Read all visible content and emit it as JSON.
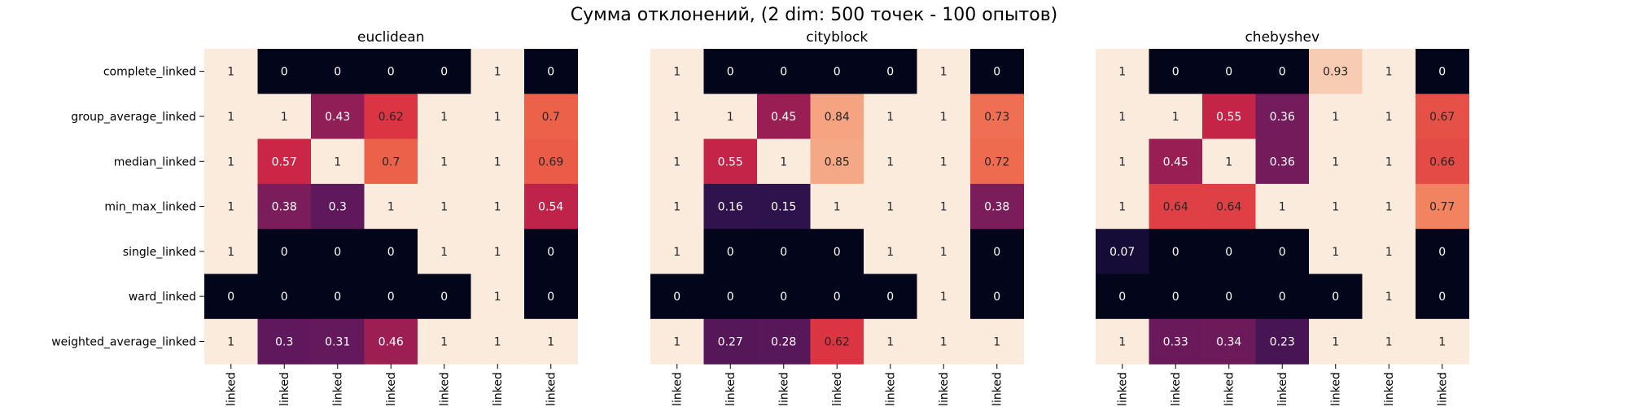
{
  "figure": {
    "suptitle": "Сумма отклонений, (2 dim: 500 точек - 100 опытов)"
  },
  "chart_data": [
    {
      "type": "heatmap",
      "title": "euclidean",
      "rows": [
        "complete_linked",
        "group_average_linked",
        "median_linked",
        "min_max_linked",
        "single_linked",
        "ward_linked",
        "weighted_average_linked"
      ],
      "col_tick_labels": [
        "linked",
        "linked",
        "linked",
        "linked",
        "linked",
        "linked",
        "linked"
      ],
      "values": [
        [
          1,
          0,
          0,
          0,
          0,
          1,
          0
        ],
        [
          1,
          1,
          0.43,
          0.62,
          1,
          1,
          0.7
        ],
        [
          1,
          0.57,
          1,
          0.7,
          1,
          1,
          0.69
        ],
        [
          1,
          0.38,
          0.3,
          1,
          1,
          1,
          0.54
        ],
        [
          1,
          0,
          0,
          0,
          1,
          1,
          0
        ],
        [
          0,
          0,
          0,
          0,
          0,
          1,
          0
        ],
        [
          1,
          0.3,
          0.31,
          0.46,
          1,
          1,
          1
        ]
      ],
      "colormap": "rocket",
      "annotated": true
    },
    {
      "type": "heatmap",
      "title": "cityblock",
      "rows": [
        "complete_linked",
        "group_average_linked",
        "median_linked",
        "min_max_linked",
        "single_linked",
        "ward_linked",
        "weighted_average_linked"
      ],
      "col_tick_labels": [
        "linked",
        "linked",
        "linked",
        "linked",
        "linked",
        "linked",
        "linked"
      ],
      "values": [
        [
          1,
          0,
          0,
          0,
          0,
          1,
          0
        ],
        [
          1,
          1,
          0.45,
          0.84,
          1,
          1,
          0.73
        ],
        [
          1,
          0.55,
          1,
          0.85,
          1,
          1,
          0.72
        ],
        [
          1,
          0.16,
          0.15,
          1,
          1,
          1,
          0.38
        ],
        [
          1,
          0,
          0,
          0,
          1,
          1,
          0
        ],
        [
          0,
          0,
          0,
          0,
          0,
          1,
          0
        ],
        [
          1,
          0.27,
          0.28,
          0.62,
          1,
          1,
          1
        ]
      ],
      "colormap": "rocket",
      "annotated": true
    },
    {
      "type": "heatmap",
      "title": "chebyshev",
      "rows": [
        "complete_linked",
        "group_average_linked",
        "median_linked",
        "min_max_linked",
        "single_linked",
        "ward_linked",
        "weighted_average_linked"
      ],
      "col_tick_labels": [
        "linked",
        "linked",
        "linked",
        "linked",
        "linked",
        "linked",
        "linked"
      ],
      "values": [
        [
          1,
          0,
          0,
          0,
          0.93,
          1,
          0
        ],
        [
          1,
          1,
          0.55,
          0.36,
          1,
          1,
          0.67
        ],
        [
          1,
          0.45,
          1,
          0.36,
          1,
          1,
          0.66
        ],
        [
          1,
          0.64,
          0.64,
          1,
          1,
          1,
          0.77
        ],
        [
          0.07,
          0,
          0,
          0,
          1,
          1,
          0
        ],
        [
          0,
          0,
          0,
          0,
          0,
          1,
          0
        ],
        [
          1,
          0.33,
          0.34,
          0.23,
          1,
          1,
          1
        ]
      ],
      "colormap": "rocket",
      "annotated": true
    }
  ]
}
